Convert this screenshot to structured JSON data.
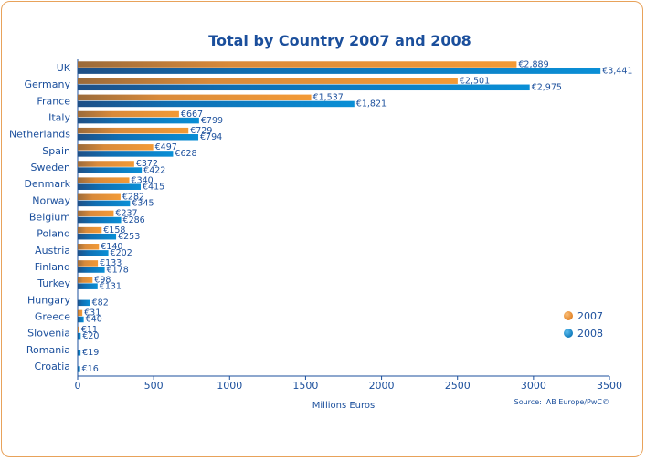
{
  "chart_data": {
    "type": "bar",
    "orientation": "horizontal",
    "title": "Total by Country 2007 and 2008",
    "xlabel": "Millions Euros",
    "source": "Source: IAB Europe/PwC©",
    "xlim": [
      0,
      3500
    ],
    "xticks": [
      "0",
      "500",
      "1000",
      "1500",
      "2000",
      "2500",
      "3000",
      "3500"
    ],
    "legend_position": "right",
    "categories": [
      "UK",
      "Germany",
      "France",
      "Italy",
      "Netherlands",
      "Spain",
      "Sweden",
      "Denmark",
      "Norway",
      "Belgium",
      "Poland",
      "Austria",
      "Finland",
      "Turkey",
      "Hungary",
      "Greece",
      "Slovenia",
      "Romania",
      "Croatia"
    ],
    "series": [
      {
        "name": "2007",
        "color": "#e8892a",
        "values": [
          2889,
          2501,
          1537,
          667,
          729,
          497,
          372,
          340,
          282,
          237,
          158,
          140,
          133,
          98,
          null,
          31,
          11,
          null,
          null
        ],
        "labels": [
          "€2,889",
          "€2,501",
          "€1,537",
          "€667",
          "€729",
          "€497",
          "€372",
          "€340",
          "€282",
          "€237",
          "€158",
          "€140",
          "€133",
          "€98",
          "",
          "€31",
          "€11",
          "",
          ""
        ]
      },
      {
        "name": "2008",
        "color": "#0e7fc4",
        "values": [
          3441,
          2975,
          1821,
          799,
          794,
          628,
          422,
          415,
          345,
          286,
          253,
          202,
          178,
          131,
          82,
          40,
          20,
          19,
          16
        ],
        "labels": [
          "€3,441",
          "€2,975",
          "€1,821",
          "€799",
          "€794",
          "€628",
          "€422",
          "€415",
          "€345",
          "€286",
          "€253",
          "€202",
          "€178",
          "€131",
          "€82",
          "€40",
          "€20",
          "€19",
          "€16"
        ]
      }
    ]
  }
}
